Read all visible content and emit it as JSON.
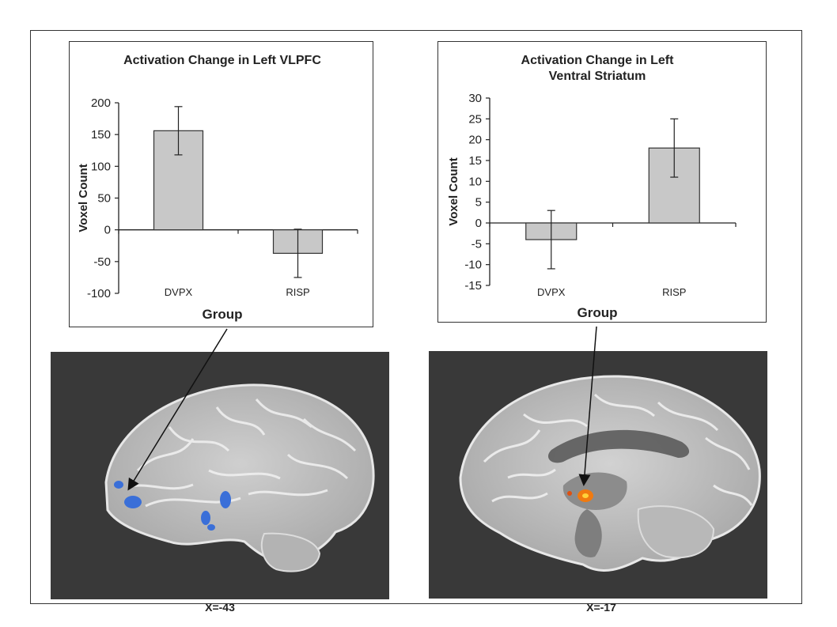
{
  "chart_data": [
    {
      "type": "bar",
      "title_lines": [
        "Activation Change in Left VLPFC"
      ],
      "xlabel": "Group",
      "ylabel": "Voxel Count",
      "categories": [
        "DVPX",
        "RISP"
      ],
      "values": [
        156,
        -37
      ],
      "error": [
        38,
        38
      ],
      "ylim": [
        -100,
        200
      ],
      "yticks": [
        200,
        150,
        100,
        50,
        0,
        -50,
        -100
      ],
      "bar_color": "#c8c8c8",
      "grid": false
    },
    {
      "type": "bar",
      "title_lines": [
        "Activation Change in Left",
        "Ventral Striatum"
      ],
      "xlabel": "Group",
      "ylabel": "Voxel Count",
      "categories": [
        "DVPX",
        "RISP"
      ],
      "values": [
        -4,
        18
      ],
      "error": [
        7,
        7
      ],
      "ylim": [
        -15,
        30
      ],
      "yticks": [
        30,
        25,
        20,
        15,
        10,
        5,
        0,
        -5,
        -10,
        -15
      ],
      "bar_color": "#c8c8c8",
      "grid": false
    }
  ],
  "panels": {
    "left_caption": "X=-43",
    "right_caption": "X=-17",
    "activation_colors": {
      "left": "#3a6fd8",
      "right": "#f07a10"
    }
  }
}
